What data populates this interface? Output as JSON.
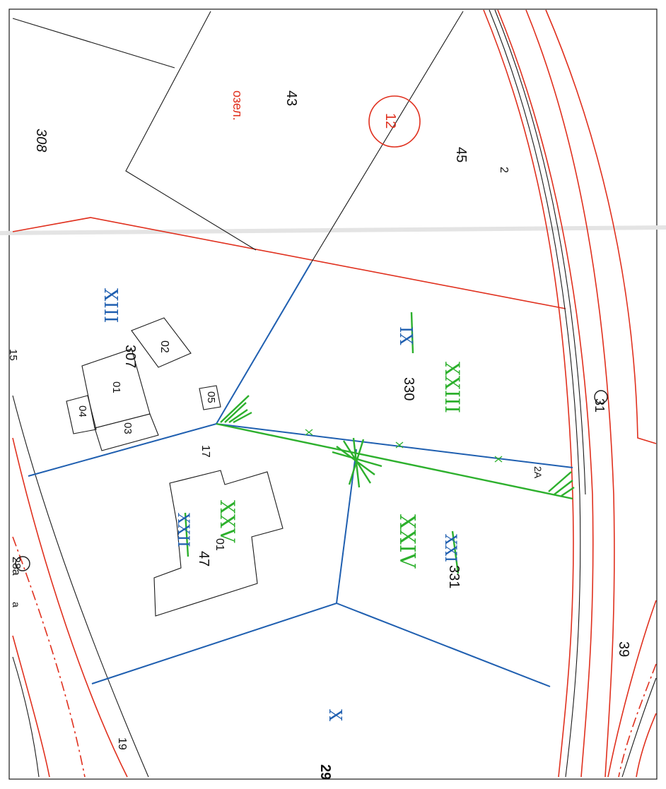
{
  "colors": {
    "background": "#ffffff",
    "cadastral_line": "#1a1a1a",
    "regulation_line": "#e0301e",
    "plot_boundary_blue": "#1f5fb0",
    "proposed_green": "#2db02d",
    "roman_blue": "#1f5fb0",
    "roman_green": "#2db02d",
    "label_red": "#e0301e",
    "label_black": "#111111"
  },
  "labels": {
    "plot_308": "308",
    "plot_43": "43",
    "plot_45": "45",
    "green_area": "озел.",
    "circle_12": "12",
    "num_2": "2",
    "quarter_XIII": "XIII",
    "plot_307": "307",
    "bldg_02": "02",
    "bldg_01": "01",
    "bldg_03": "03",
    "bldg_04": "04",
    "bldg_05": "05",
    "num_15": "15",
    "num_17": "17",
    "plot_330": "330",
    "roman_IX": "IX",
    "roman_XXIII": "XXIII",
    "circle_31": "31",
    "num_2A": "2A",
    "roman_XXIV": "XXIV",
    "roman_XXI": "XXI",
    "plot_331": "331",
    "roman_XXV": "XXV",
    "roman_XXII": "XXII",
    "plot_47": "47",
    "bldg_01b": "01",
    "circle_28a": "28a",
    "street_a": "a",
    "num_39": "39",
    "roman_X": "X",
    "num_19": "19",
    "num_29": "29"
  }
}
